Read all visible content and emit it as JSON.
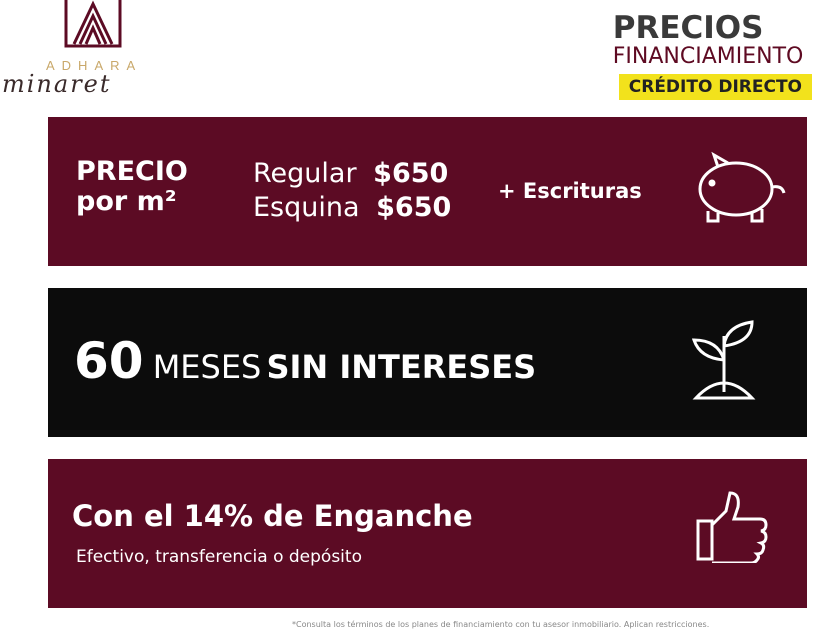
{
  "logo": {
    "brand": "ADHARA",
    "script": "minaret"
  },
  "header": {
    "title": "PRECIOS",
    "subtitle": "FINANCIAMIENTO",
    "badge": "CRÉDITO DIRECTO",
    "badge_color": "#f2e21c"
  },
  "price": {
    "title_1": "PRECIO",
    "title_2": "por m²",
    "rows": [
      {
        "label": "Regular",
        "value": "$650"
      },
      {
        "label": "Esquina",
        "value": "$650"
      }
    ],
    "extra": "+ Escrituras",
    "icon": "piggy-bank-icon"
  },
  "months": {
    "number": "60",
    "word1": "MESES",
    "word2": "SIN INTERESES",
    "icon": "plant-sprout-icon"
  },
  "down": {
    "title": "Con el 14% de Enganche",
    "subtitle": "Efectivo, transferencia o depósito",
    "icon": "thumbs-up-icon"
  },
  "footer": {
    "note": "*Consulta los términos de los planes de financiamiento con tu asesor inmobiliario. Aplican restricciones."
  },
  "colors": {
    "maroon": "#5c0b24",
    "black": "#0c0c0c"
  }
}
